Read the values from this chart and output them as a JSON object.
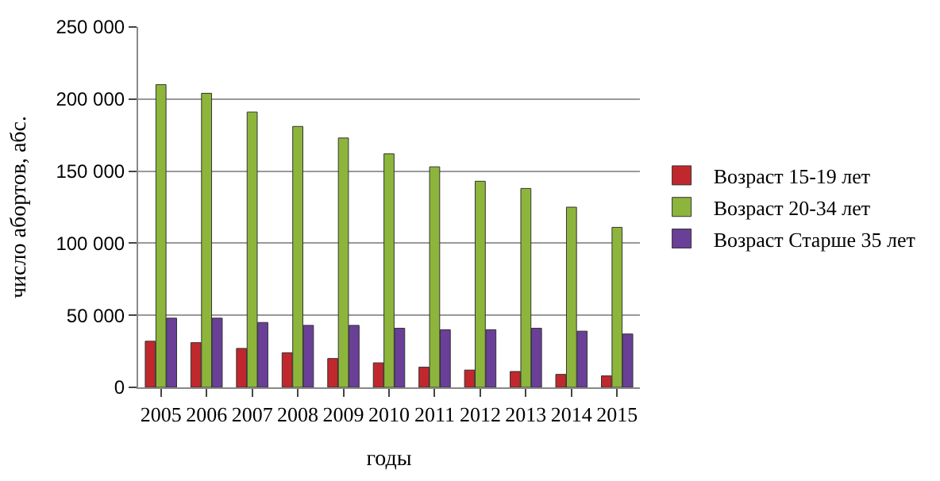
{
  "chart_data": {
    "type": "bar",
    "xlabel": "годы",
    "ylabel": "число абортов, абс.",
    "categories": [
      "2005",
      "2006",
      "2007",
      "2008",
      "2009",
      "2010",
      "2011",
      "2012",
      "2013",
      "2014",
      "2015"
    ],
    "series": [
      {
        "name": "Возраст 15-19 лет",
        "color": "#c0282d",
        "values": [
          32000,
          31000,
          27000,
          24000,
          20000,
          17000,
          14000,
          12000,
          11000,
          9000,
          8000
        ]
      },
      {
        "name": "Возраст 20-34 лет",
        "color": "#8db53c",
        "values": [
          210000,
          204000,
          191000,
          181000,
          173000,
          162000,
          153000,
          143000,
          138000,
          125000,
          111000
        ]
      },
      {
        "name": "Возраст Старше 35 лет",
        "color": "#6a3f97",
        "values": [
          48000,
          48000,
          45000,
          43000,
          43000,
          41000,
          40000,
          40000,
          41000,
          39000,
          37000
        ]
      }
    ],
    "ylim": [
      0,
      250000
    ],
    "yticks": [
      {
        "value": 0,
        "label": "0"
      },
      {
        "value": 50000,
        "label": "50 000"
      },
      {
        "value": 100000,
        "label": "100 000"
      },
      {
        "value": 150000,
        "label": "150 000"
      },
      {
        "value": 200000,
        "label": "200 000"
      },
      {
        "value": 250000,
        "label": "250 000"
      }
    ],
    "grid": "y",
    "legend": "right"
  }
}
